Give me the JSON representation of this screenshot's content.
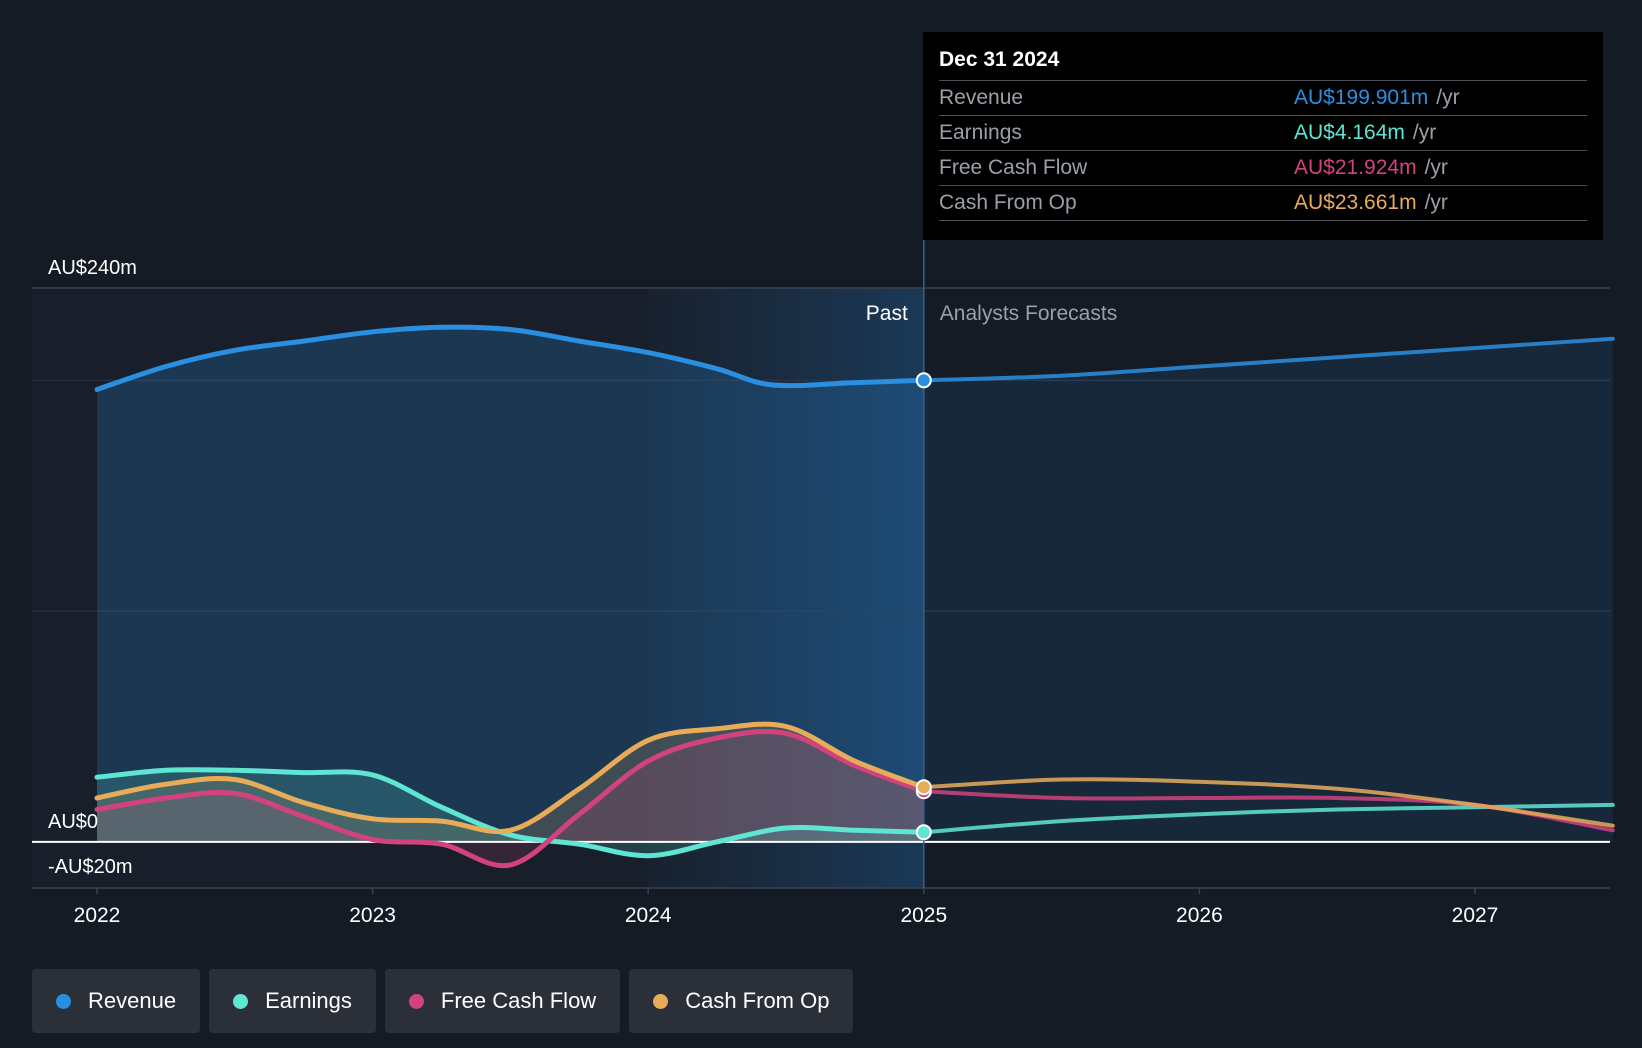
{
  "colors": {
    "revenue": "#2a8fe0",
    "earnings": "#5ee6d2",
    "fcf": "#d2427f",
    "cfo": "#e8ac59"
  },
  "tooltip": {
    "date": "Dec 31 2024",
    "rows": [
      {
        "label": "Revenue",
        "value": "AU$199.901m",
        "unit": "/yr",
        "color": "#2a8fe0"
      },
      {
        "label": "Earnings",
        "value": "AU$4.164m",
        "unit": "/yr",
        "color": "#5ee6d2"
      },
      {
        "label": "Free Cash Flow",
        "value": "AU$21.924m",
        "unit": "/yr",
        "color": "#d2427f"
      },
      {
        "label": "Cash From Op",
        "value": "AU$23.661m",
        "unit": "/yr",
        "color": "#e8ac59"
      }
    ]
  },
  "legend": [
    {
      "label": "Revenue",
      "color": "#2a8fe0"
    },
    {
      "label": "Earnings",
      "color": "#5ee6d2"
    },
    {
      "label": "Free Cash Flow",
      "color": "#d2427f"
    },
    {
      "label": "Cash From Op",
      "color": "#e8ac59"
    }
  ],
  "chart_data": {
    "type": "line",
    "title": "",
    "xlabel": "",
    "ylabel": "",
    "xlim": [
      2021.77,
      2027.5
    ],
    "ylim": [
      -20,
      240
    ],
    "y_tick_labels": [
      {
        "value": 240,
        "label": "AU$240m"
      },
      {
        "value": 0,
        "label": "AU$0"
      },
      {
        "value": -20,
        "label": "-AU$20m"
      }
    ],
    "x_ticks": [
      2022,
      2023,
      2024,
      2025,
      2026,
      2027
    ],
    "x_tick_labels": [
      "2022",
      "2023",
      "2024",
      "2025",
      "2026",
      "2027"
    ],
    "gridlines": [
      200,
      100
    ],
    "past_label": "Past",
    "forecast_label": "Analysts Forecasts",
    "divider_x": 2025,
    "highlight_range": [
      2024,
      2025
    ],
    "series": [
      {
        "name": "Revenue",
        "key": "revenue",
        "x": [
          2022,
          2022.25,
          2022.5,
          2022.75,
          2023,
          2023.25,
          2023.5,
          2023.75,
          2024,
          2024.25,
          2024.45,
          2024.75,
          2025
        ],
        "values": [
          196,
          206,
          213,
          217,
          221,
          223,
          222,
          217,
          212,
          205,
          198,
          199,
          200
        ],
        "forecast_x": [
          2025,
          2025.5,
          2026,
          2026.5,
          2027,
          2027.5
        ],
        "forecast_values": [
          200,
          202,
          206,
          210,
          214,
          218
        ]
      },
      {
        "name": "Earnings",
        "key": "earnings",
        "x": [
          2022,
          2022.25,
          2022.5,
          2022.75,
          2023,
          2023.25,
          2023.5,
          2023.75,
          2024,
          2024.25,
          2024.5,
          2024.75,
          2025
        ],
        "values": [
          28,
          31,
          31,
          30,
          29,
          15,
          3,
          -1,
          -6,
          0,
          6,
          5,
          4.164
        ],
        "forecast_x": [
          2025,
          2025.5,
          2026,
          2026.5,
          2027,
          2027.5
        ],
        "forecast_values": [
          4.164,
          9,
          12,
          14,
          15,
          16
        ]
      },
      {
        "name": "Free Cash Flow",
        "key": "fcf",
        "x": [
          2022,
          2022.25,
          2022.5,
          2022.75,
          2023,
          2023.25,
          2023.5,
          2023.75,
          2024,
          2024.25,
          2024.5,
          2024.75,
          2025
        ],
        "values": [
          14,
          19,
          21,
          11,
          1,
          -1,
          -10,
          12,
          35,
          45,
          47,
          33,
          21.924
        ],
        "forecast_x": [
          2025,
          2025.5,
          2026,
          2026.5,
          2027,
          2027.5
        ],
        "forecast_values": [
          21.924,
          19,
          19,
          19,
          16,
          5
        ]
      },
      {
        "name": "Cash From Op",
        "key": "cfo",
        "x": [
          2022,
          2022.25,
          2022.5,
          2022.75,
          2023,
          2023.25,
          2023.5,
          2023.75,
          2024,
          2024.25,
          2024.5,
          2024.75,
          2025
        ],
        "values": [
          19,
          25,
          27,
          17,
          10,
          9,
          5,
          23,
          44,
          49,
          50,
          35,
          23.661
        ],
        "forecast_x": [
          2025,
          2025.5,
          2026,
          2026.5,
          2027,
          2027.5
        ],
        "forecast_values": [
          23.661,
          27,
          26,
          23,
          16,
          7
        ]
      }
    ]
  }
}
